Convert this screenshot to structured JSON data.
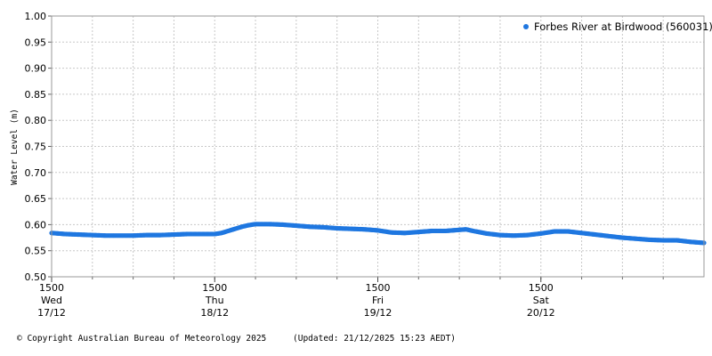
{
  "chart_data": {
    "type": "scatter",
    "ylabel": "Water Level (m)",
    "ylim": [
      0.5,
      1.0
    ],
    "yticks": [
      "0.50",
      "0.55",
      "0.60",
      "0.65",
      "0.70",
      "0.75",
      "0.80",
      "0.85",
      "0.90",
      "0.95",
      "1.00"
    ],
    "xlim_hours": [
      0,
      96
    ],
    "xticks": [
      {
        "hour": 0,
        "time": "1500",
        "day": "Wed",
        "date": "17/12"
      },
      {
        "hour": 24,
        "time": "1500",
        "day": "Thu",
        "date": "18/12"
      },
      {
        "hour": 48,
        "time": "1500",
        "day": "Fri",
        "date": "19/12"
      },
      {
        "hour": 72,
        "time": "1500",
        "day": "Sat",
        "date": "20/12"
      }
    ],
    "grid": true,
    "legend_position": "top-right",
    "series": [
      {
        "name": "Forbes River at Birdwood (560031)",
        "color": "#1f77e0",
        "points": [
          [
            0,
            0.584
          ],
          [
            2,
            0.582
          ],
          [
            4,
            0.581
          ],
          [
            6,
            0.58
          ],
          [
            8,
            0.579
          ],
          [
            10,
            0.579
          ],
          [
            12,
            0.579
          ],
          [
            14,
            0.58
          ],
          [
            16,
            0.58
          ],
          [
            18,
            0.581
          ],
          [
            20,
            0.582
          ],
          [
            22,
            0.582
          ],
          [
            24,
            0.582
          ],
          [
            25,
            0.584
          ],
          [
            26,
            0.588
          ],
          [
            27,
            0.592
          ],
          [
            28,
            0.596
          ],
          [
            29,
            0.599
          ],
          [
            30,
            0.601
          ],
          [
            32,
            0.601
          ],
          [
            34,
            0.6
          ],
          [
            36,
            0.598
          ],
          [
            38,
            0.596
          ],
          [
            40,
            0.595
          ],
          [
            42,
            0.593
          ],
          [
            44,
            0.592
          ],
          [
            46,
            0.591
          ],
          [
            48,
            0.589
          ],
          [
            50,
            0.585
          ],
          [
            52,
            0.584
          ],
          [
            54,
            0.586
          ],
          [
            56,
            0.588
          ],
          [
            58,
            0.588
          ],
          [
            60,
            0.59
          ],
          [
            61,
            0.591
          ],
          [
            62,
            0.588
          ],
          [
            64,
            0.583
          ],
          [
            66,
            0.58
          ],
          [
            68,
            0.579
          ],
          [
            70,
            0.58
          ],
          [
            72,
            0.583
          ],
          [
            74,
            0.587
          ],
          [
            76,
            0.587
          ],
          [
            78,
            0.584
          ],
          [
            80,
            0.581
          ],
          [
            82,
            0.578
          ],
          [
            84,
            0.575
          ],
          [
            86,
            0.573
          ],
          [
            88,
            0.571
          ],
          [
            90,
            0.57
          ],
          [
            92,
            0.57
          ],
          [
            94,
            0.567
          ],
          [
            96,
            0.565
          ]
        ]
      }
    ]
  },
  "footer": {
    "copyright": "© Copyright Australian Bureau of Meteorology 2025",
    "updated": "(Updated: 21/12/2025 15:23 AEDT)"
  }
}
